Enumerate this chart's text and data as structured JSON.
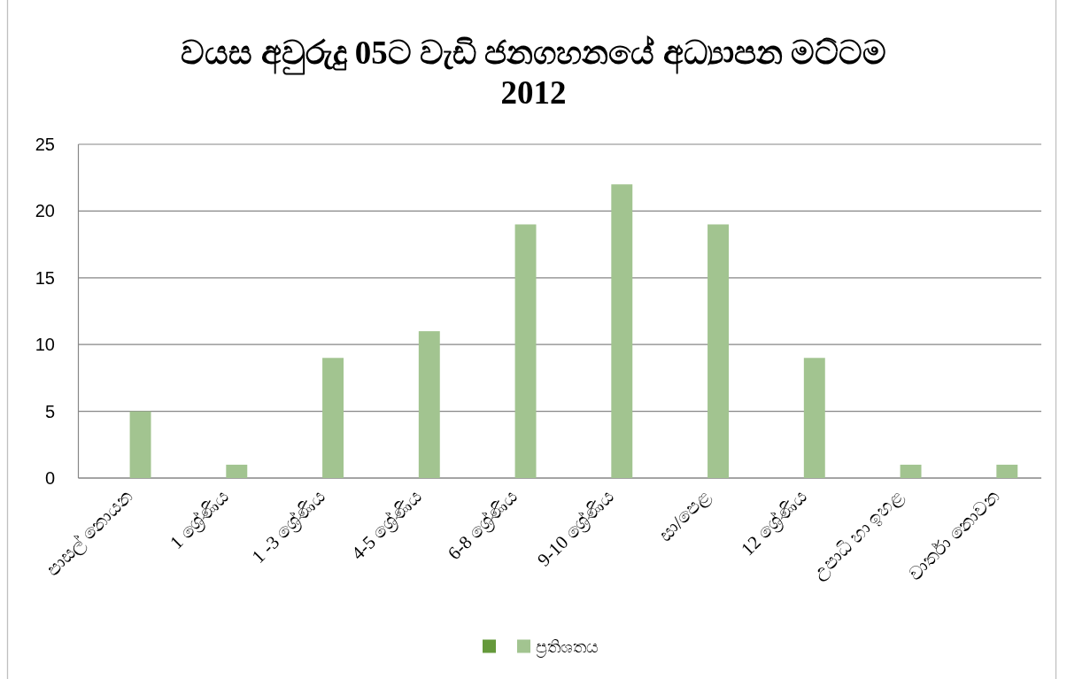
{
  "chart_data": {
    "type": "bar",
    "title": "වයස අවුරුදු 05ට වැඩි ජනගහනයේ අධ්‍යාපන මට්ටම 2012",
    "categories": [
      "පාසල් නොයන",
      "1 ශ්‍රේණිය",
      "1 -3 ශ්‍රේණිය",
      "4-5 ශ්‍රේණිය",
      "6-8 ශ්‍රේණිය",
      "9-10 ශ්‍රේණිය",
      "සා/පෙළ",
      "12 ශ්‍රේණිය",
      "උපාධි හා ඉහළ",
      "වාර්තා නොවන"
    ],
    "series": [
      {
        "color": "#65993b",
        "values": [
          null,
          null,
          null,
          null,
          null,
          null,
          null,
          null,
          null,
          null
        ]
      },
      {
        "name": "ප්‍රතිශතය",
        "color": "#a2c490",
        "values": [
          5,
          1,
          9,
          11,
          19,
          22,
          19,
          9,
          1,
          1
        ]
      }
    ],
    "ylim": [
      0,
      25
    ],
    "yticks": [
      0,
      5,
      10,
      15,
      20,
      25
    ],
    "grid": "y",
    "legend": "bottom"
  }
}
